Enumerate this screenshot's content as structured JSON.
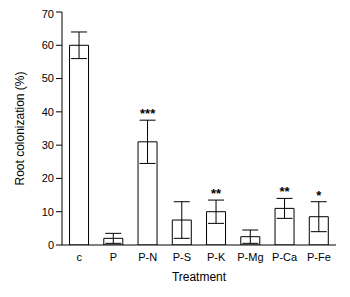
{
  "chart_data": {
    "type": "bar",
    "x_label": "Treatment",
    "y_label": "Root colonization (%)",
    "categories": [
      "c",
      "P",
      "P-N",
      "P-S",
      "P-K",
      "P-Mg",
      "P-Ca",
      "P-Fe"
    ],
    "values": [
      60,
      2,
      31,
      7.5,
      10,
      2.5,
      11,
      8.5
    ],
    "errors": [
      4,
      1.5,
      6.5,
      5.5,
      3.5,
      2,
      3,
      4.5
    ],
    "significance": [
      null,
      null,
      "***",
      null,
      "**",
      null,
      "**",
      "*"
    ],
    "color": "#ffffff",
    "ylim": [
      0,
      70
    ],
    "yticks": [
      0,
      10,
      20,
      30,
      40,
      50,
      60,
      70
    ],
    "grid": false
  }
}
